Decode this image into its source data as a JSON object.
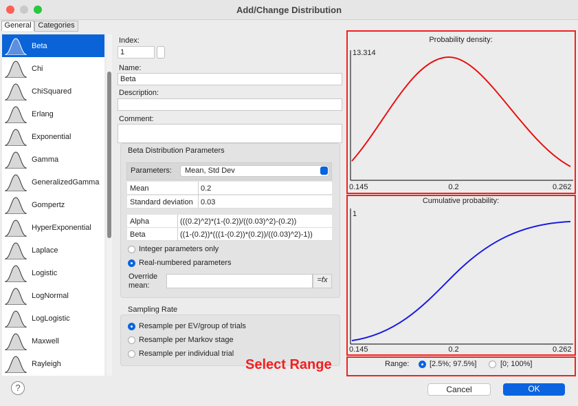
{
  "window": {
    "title": "Add/Change Distribution"
  },
  "tabs": [
    "General",
    "Categories"
  ],
  "distributions": [
    "Beta",
    "Chi",
    "ChiSquared",
    "Erlang",
    "Exponential",
    "Gamma",
    "GeneralizedGamma",
    "Gompertz",
    "HyperExponential",
    "Laplace",
    "Logistic",
    "LogNormal",
    "LogLogistic",
    "Maxwell",
    "Rayleigh"
  ],
  "form": {
    "index_label": "Index:",
    "index_value": "1",
    "name_label": "Name:",
    "name_value": "Beta",
    "description_label": "Description:",
    "comment_label": "Comment:"
  },
  "params": {
    "title": "Beta Distribution Parameters",
    "parameters_label": "Parameters:",
    "parameters_value": "Mean, Std Dev",
    "rows": [
      [
        "Mean",
        "0.2"
      ],
      [
        "Standard deviation",
        "0.03"
      ]
    ],
    "formulas": [
      [
        "Alpha",
        "(((0.2)^2)*(1-(0.2))/((0.03)^2)-(0.2))"
      ],
      [
        "Beta",
        "((1-(0.2))*(((1-(0.2))*(0.2))/((0.03)^2)-1))"
      ]
    ],
    "options": [
      "Integer parameters only",
      "Real-numbered parameters"
    ],
    "override_label": "Override mean:",
    "fx_button": "=fx"
  },
  "sampling": {
    "title": "Sampling Rate",
    "options": [
      "Resample per EV/group of trials",
      "Resample per Markov stage",
      "Resample per individual trial"
    ]
  },
  "density": {
    "title": "Probability density:",
    "y_max": "13.314",
    "x_labels": [
      "0.145",
      "0.2",
      "0.262"
    ]
  },
  "cumulative": {
    "title": "Cumulative probability:",
    "y_max": "1",
    "x_labels": [
      "0.145",
      "0.2",
      "0.262"
    ]
  },
  "range": {
    "label": "Range:",
    "options": [
      "[2.5%; 97.5%]",
      "[0; 100%]"
    ]
  },
  "annotation": "Select Range",
  "buttons": {
    "cancel": "Cancel",
    "ok": "OK"
  },
  "help": "?"
}
